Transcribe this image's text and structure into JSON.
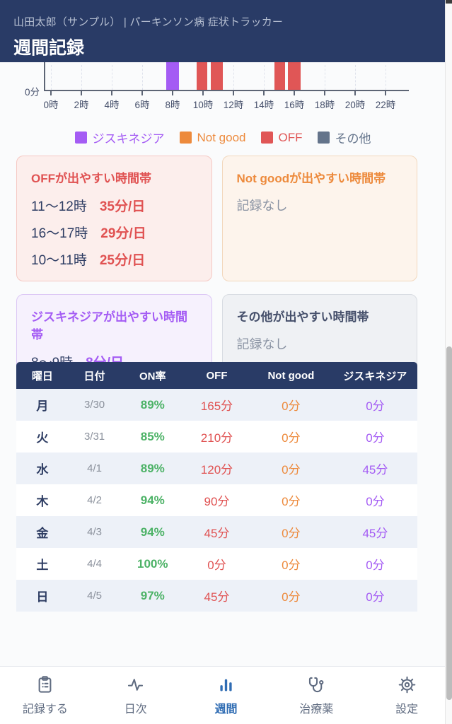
{
  "header": {
    "subtitle": "山田太郎（サンプル） | パーキンソン病 症状トラッカー",
    "title": "週間記録"
  },
  "chart_data": {
    "type": "bar",
    "description": "hourly symptom timeline, minutes per hour-of-day (top of bars cropped by header)",
    "y_axis_zero_label": "0分",
    "x_ticks": [
      "0時",
      "2時",
      "4時",
      "6時",
      "8時",
      "10時",
      "12時",
      "14時",
      "16時",
      "18時",
      "20時",
      "22時"
    ],
    "x_range_hours": [
      0,
      24
    ],
    "segments": [
      {
        "type": "dyskinesia",
        "start_hour": 7.6,
        "end_hour": 8.4
      },
      {
        "type": "off",
        "start_hour": 9.6,
        "end_hour": 10.3
      },
      {
        "type": "off",
        "start_hour": 10.5,
        "end_hour": 11.3
      },
      {
        "type": "off",
        "start_hour": 14.7,
        "end_hour": 15.4
      },
      {
        "type": "off",
        "start_hour": 15.6,
        "end_hour": 16.4
      }
    ],
    "colors": {
      "dyskinesia": "#a45cf4",
      "notgood": "#ed8a3c",
      "off": "#e05656",
      "other": "#64748b"
    },
    "legend": [
      {
        "key": "dyskinesia",
        "label": "ジスキネジア"
      },
      {
        "key": "notgood",
        "label": "Not good"
      },
      {
        "key": "off",
        "label": "OFF"
      },
      {
        "key": "other",
        "label": "その他"
      }
    ]
  },
  "cards": {
    "off": {
      "title": "OFFが出やすい時間帯",
      "rows": [
        {
          "range": "11〜12時",
          "value": "35分/日"
        },
        {
          "range": "16〜17時",
          "value": "29分/日"
        },
        {
          "range": "10〜11時",
          "value": "25分/日"
        }
      ]
    },
    "notgood": {
      "title": "Not goodが出やすい時間帯",
      "empty": "記録なし"
    },
    "dyskinesia": {
      "title": "ジスキネジアが出やすい時間帯",
      "rows": [
        {
          "range": "8〜9時",
          "value": "8分/日"
        }
      ]
    },
    "other": {
      "title": "その他が出やすい時間帯",
      "empty": "記録なし"
    }
  },
  "table": {
    "columns": [
      "曜日",
      "日付",
      "ON率",
      "OFF",
      "Not good",
      "ジスキネジア"
    ],
    "rows": [
      {
        "day": "月",
        "date": "3/30",
        "on": "89%",
        "off": "165分",
        "notgood": "0分",
        "dysk": "0分"
      },
      {
        "day": "火",
        "date": "3/31",
        "on": "85%",
        "off": "210分",
        "notgood": "0分",
        "dysk": "0分"
      },
      {
        "day": "水",
        "date": "4/1",
        "on": "89%",
        "off": "120分",
        "notgood": "0分",
        "dysk": "45分"
      },
      {
        "day": "木",
        "date": "4/2",
        "on": "94%",
        "off": "90分",
        "notgood": "0分",
        "dysk": "0分"
      },
      {
        "day": "金",
        "date": "4/3",
        "on": "94%",
        "off": "45分",
        "notgood": "0分",
        "dysk": "45分"
      },
      {
        "day": "土",
        "date": "4/4",
        "on": "100%",
        "off": "0分",
        "notgood": "0分",
        "dysk": "0分"
      },
      {
        "day": "日",
        "date": "4/5",
        "on": "97%",
        "off": "45分",
        "notgood": "0分",
        "dysk": "0分"
      }
    ]
  },
  "nav": {
    "items": [
      {
        "label": "記録する",
        "icon": "clipboard-icon",
        "active": false
      },
      {
        "label": "日次",
        "icon": "pulse-icon",
        "active": false
      },
      {
        "label": "週間",
        "icon": "bar-chart-icon",
        "active": true
      },
      {
        "label": "治療薬",
        "icon": "stethoscope-icon",
        "active": false
      },
      {
        "label": "設定",
        "icon": "gear-icon",
        "active": false
      }
    ]
  }
}
